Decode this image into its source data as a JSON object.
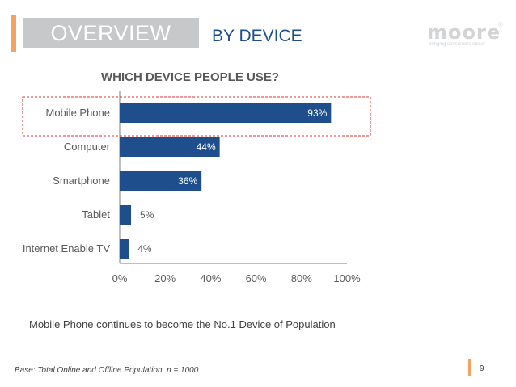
{
  "header": {
    "section_label": "OVERVIEW",
    "subsection_label": "BY DEVICE"
  },
  "logo": {
    "wordmark": "moore",
    "registered": "®",
    "tagline": "bringing consumers closer"
  },
  "colors": {
    "accent": "#f4a261",
    "bar": "#1f4e8c",
    "highlight": "#e03030"
  },
  "chart_data": {
    "type": "bar",
    "orientation": "horizontal",
    "title": "WHICH DEVICE PEOPLE USE?",
    "categories": [
      "Mobile Phone",
      "Computer",
      "Smartphone",
      "Tablet",
      "Internet Enable TV"
    ],
    "values": [
      93,
      44,
      36,
      5,
      4
    ],
    "value_labels": [
      "93%",
      "44%",
      "36%",
      "5%",
      "4%"
    ],
    "x_ticks": [
      "0%",
      "20%",
      "40%",
      "60%",
      "80%",
      "100%"
    ],
    "xlim": [
      0,
      100
    ],
    "grid": false,
    "highlighted_category": "Mobile Phone"
  },
  "footer": {
    "caption": "Mobile Phone continues to become the No.1 Device of Population",
    "base_note": "Base: Total Online and Offline Population, n = 1000",
    "page_number": "9"
  }
}
